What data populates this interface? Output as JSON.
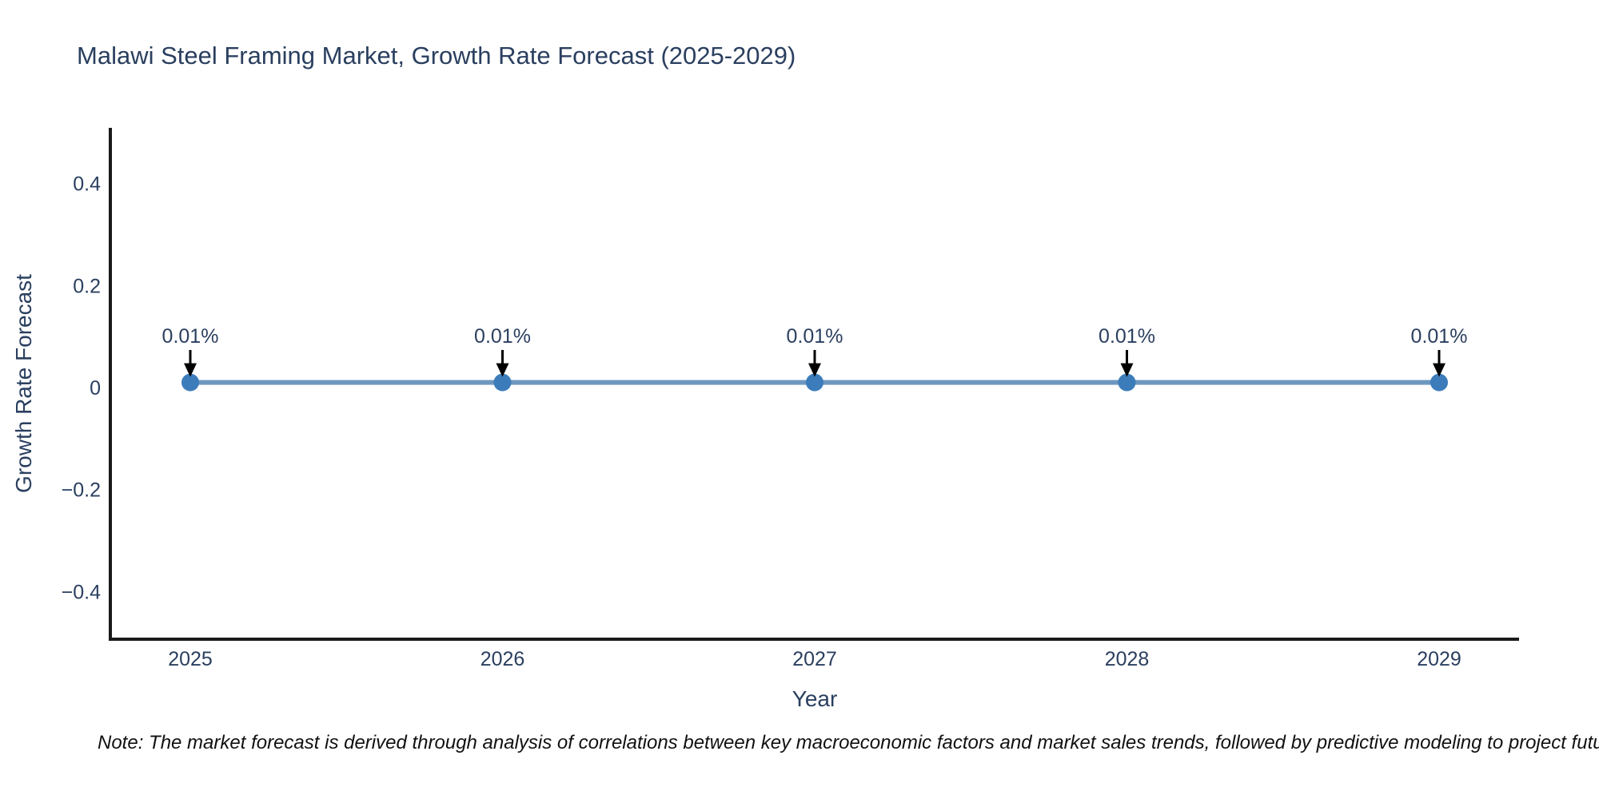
{
  "title": "Malawi Steel Framing Market, Growth Rate Forecast (2025-2029)",
  "note": "Note: The market forecast is derived through analysis of correlations between key macroeconomic factors and market sales trends, followed by predictive modeling to project future sales.",
  "chart_data": {
    "type": "line",
    "title": "Malawi Steel Framing Market, Growth Rate Forecast (2025-2029)",
    "xlabel": "Year",
    "ylabel": "Growth Rate Forecast",
    "x": [
      2025,
      2026,
      2027,
      2028,
      2029
    ],
    "series": [
      {
        "name": "Growth Rate Forecast",
        "values": [
          0.01,
          0.01,
          0.01,
          0.01,
          0.01
        ]
      }
    ],
    "point_labels": [
      "0.01%",
      "0.01%",
      "0.01%",
      "0.01%",
      "0.01%"
    ],
    "yticks": [
      0.4,
      0.2,
      0,
      -0.2,
      -0.4
    ],
    "ylim": [
      -0.49,
      0.51
    ],
    "grid": false,
    "legend_position": "none",
    "colors": {
      "line": "#5c8cb8",
      "marker": "#3c7cba",
      "axis": "#1a1a1a",
      "text": "#2a3f5f",
      "annotation_arrow": "#000000",
      "note_text": "#111111"
    }
  }
}
